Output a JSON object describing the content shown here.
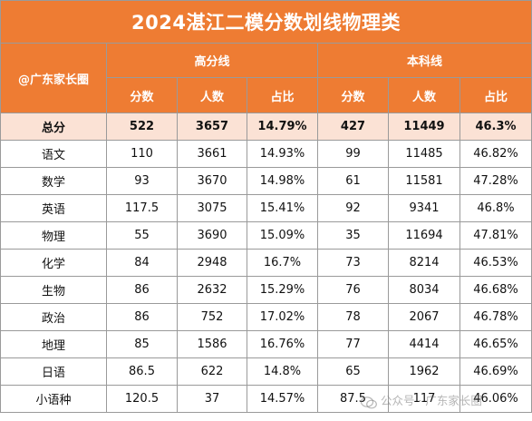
{
  "title": "2024湛江二模分数划线物理类",
  "corner_label": "@广东家长圈",
  "groups": [
    "高分线",
    "本科线"
  ],
  "columns": [
    "分数",
    "人数",
    "占比",
    "分数",
    "人数",
    "占比"
  ],
  "rows": [
    {
      "subject": "总分",
      "cells": [
        "522",
        "3657",
        "14.79%",
        "427",
        "11449",
        "46.3%"
      ]
    },
    {
      "subject": "语文",
      "cells": [
        "110",
        "3661",
        "14.93%",
        "99",
        "11485",
        "46.82%"
      ]
    },
    {
      "subject": "数学",
      "cells": [
        "93",
        "3670",
        "14.98%",
        "61",
        "11581",
        "47.28%"
      ]
    },
    {
      "subject": "英语",
      "cells": [
        "117.5",
        "3075",
        "15.41%",
        "92",
        "9341",
        "46.8%"
      ]
    },
    {
      "subject": "物理",
      "cells": [
        "55",
        "3690",
        "15.09%",
        "35",
        "11694",
        "47.81%"
      ]
    },
    {
      "subject": "化学",
      "cells": [
        "84",
        "2948",
        "16.7%",
        "73",
        "8214",
        "46.53%"
      ]
    },
    {
      "subject": "生物",
      "cells": [
        "86",
        "2632",
        "15.29%",
        "76",
        "8034",
        "46.68%"
      ]
    },
    {
      "subject": "政治",
      "cells": [
        "86",
        "752",
        "17.02%",
        "78",
        "2067",
        "46.78%"
      ]
    },
    {
      "subject": "地理",
      "cells": [
        "85",
        "1586",
        "16.76%",
        "77",
        "4414",
        "46.65%"
      ]
    },
    {
      "subject": "日语",
      "cells": [
        "86.5",
        "622",
        "14.8%",
        "65",
        "1962",
        "46.69%"
      ]
    },
    {
      "subject": "小语种",
      "cells": [
        "120.5",
        "37",
        "14.57%",
        "87.5",
        "117",
        "46.06%"
      ]
    }
  ],
  "watermark": "公众号 · 广东家长圈",
  "colors": {
    "header_bg": "#ee7c33",
    "total_row_bg": "#fbe2d5"
  }
}
